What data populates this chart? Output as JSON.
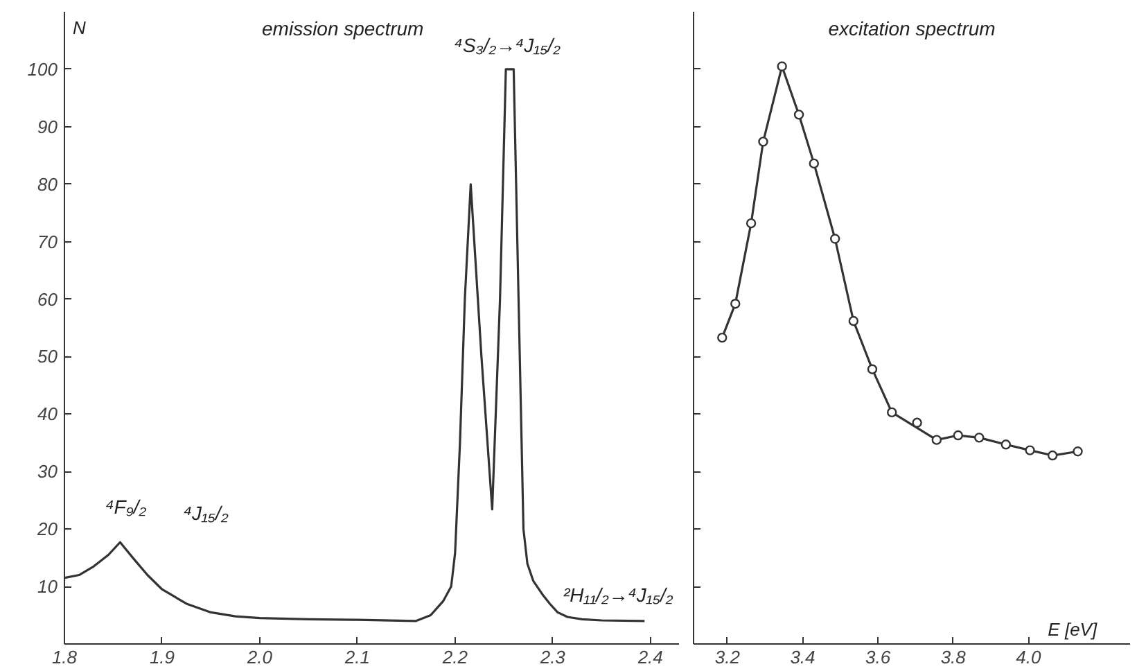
{
  "chart_data": [
    {
      "type": "line",
      "title": "emission spectrum",
      "ylabel": "N",
      "xlim": [
        1.8,
        2.43
      ],
      "xticks": [
        1.8,
        1.9,
        {
          "value": 2,
          "label": "2.0"
        },
        2.1,
        2.2,
        2.3,
        2.4
      ],
      "ylim": [
        0,
        110
      ],
      "yticks": [
        10,
        20,
        30,
        40,
        50,
        60,
        70,
        80,
        90,
        100
      ],
      "grid": false,
      "marker": "none",
      "line_style": "solid",
      "series": [
        {
          "color": "#333333",
          "x": [
            1.8,
            1.815,
            1.83,
            1.845,
            1.857,
            1.87,
            1.885,
            1.9,
            1.925,
            1.95,
            1.975,
            2.0,
            2.05,
            2.1,
            2.16,
            2.175,
            2.188,
            2.196,
            2.2,
            2.205,
            2.21,
            2.216,
            2.227,
            2.238,
            2.246,
            2.252,
            2.26,
            2.265,
            2.27,
            2.274,
            2.28,
            2.29,
            2.297,
            2.305,
            2.315,
            2.33,
            2.35,
            2.394
          ],
          "values": [
            11.5,
            12,
            13.5,
            15.5,
            17.7,
            15,
            12,
            9.5,
            7,
            5.5,
            4.8,
            4.5,
            4.3,
            4.2,
            4.0,
            5,
            7.5,
            10,
            15.8,
            35,
            60,
            80,
            50,
            23.4,
            60,
            100,
            100,
            60,
            20,
            14,
            11,
            8.5,
            7,
            5.5,
            4.7,
            4.3,
            4.1,
            4.0
          ]
        }
      ],
      "annotations": [
        "⁴F₉/₂",
        "⁴J₁₅/₂",
        "⁴S₃/₂→⁴J₁₅/₂",
        "²H₁₁/₂→⁴J₁₅/₂"
      ]
    },
    {
      "type": "line",
      "title": "excitation spectrum",
      "xlabel": "E [eV]",
      "xlim": [
        3.11,
        4.27
      ],
      "xticks": [
        3.2,
        3.4,
        3.6,
        3.8,
        {
          "value": 4,
          "label": "4.0"
        }
      ],
      "ylim": [
        0,
        110
      ],
      "yticks": [
        10,
        20,
        30,
        40,
        50,
        60,
        70,
        80,
        90,
        100
      ],
      "tick_labels": "x",
      "grid": false,
      "marker": "circle",
      "line_style": "solid",
      "series": [
        {
          "color": "#333333",
          "x": [
            3.186,
            3.221,
            3.263,
            3.295,
            3.345,
            3.39,
            3.43,
            3.486,
            3.535,
            3.585,
            3.637,
            3.756,
            3.813,
            3.869,
            3.94,
            4.004,
            4.064,
            4.131
          ],
          "values": [
            53.3,
            59.2,
            73.2,
            87.4,
            100.5,
            92.1,
            83.6,
            70.5,
            56.2,
            47.8,
            40.3,
            35.5,
            36.3,
            35.9,
            34.7,
            33.7,
            32.8,
            33.5
          ]
        },
        {
          "type": "scatter",
          "color": "#333333",
          "x": [
            3.704
          ],
          "values": [
            38.5
          ]
        }
      ]
    }
  ]
}
